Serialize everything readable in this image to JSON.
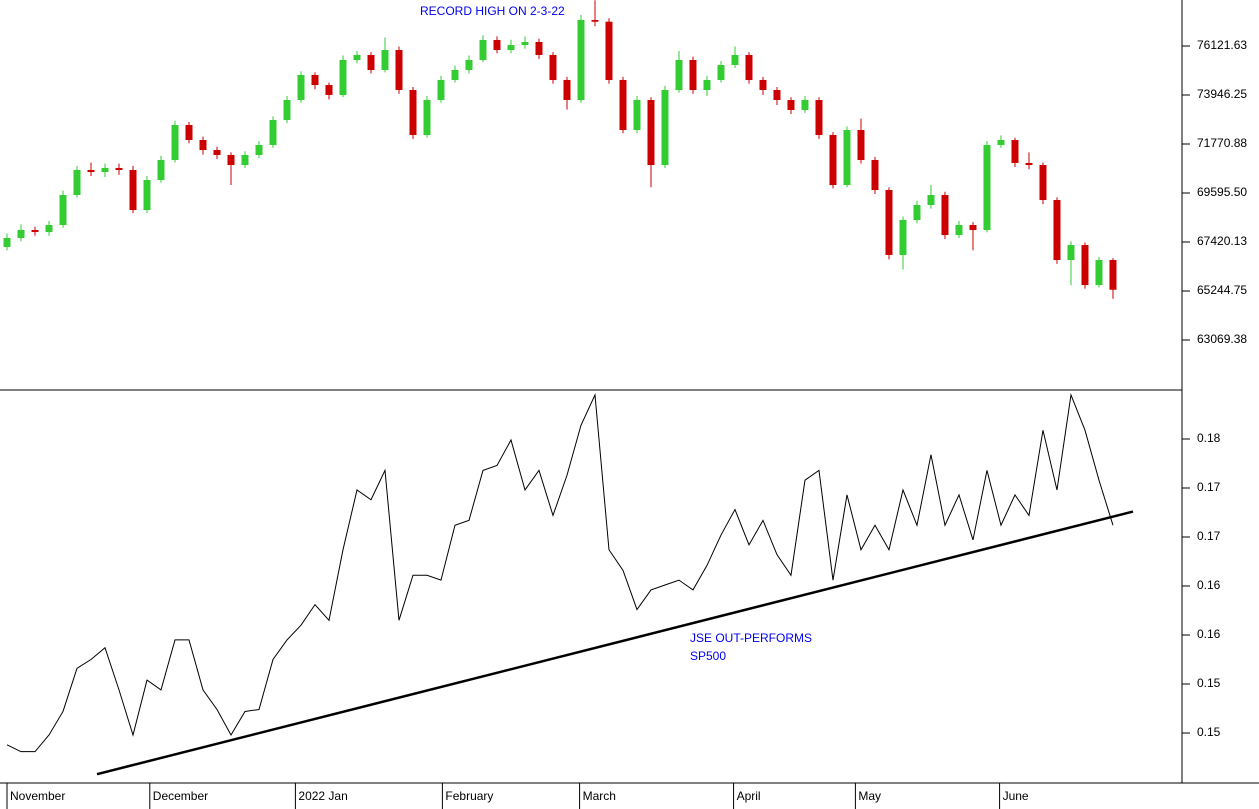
{
  "chart_data": [
    {
      "type": "candlestick",
      "up_color": "#33cc33",
      "down_color": "#cc0000",
      "annotations": [
        {
          "text": "RECORD HIGH ON 2-3-22",
          "color": "#0000ee"
        }
      ],
      "xlim": [
        -0.5,
        83.93
      ],
      "ylim": [
        60849.6,
        78163.8
      ],
      "yticks": [
        76121.63,
        73946.25,
        71770.88,
        {
          "value": 69595.5,
          "label": "69595.50"
        },
        67420.13,
        65244.75,
        63069.38
      ],
      "ohlc": [
        [
          67200,
          67800,
          67050,
          67597
        ],
        [
          67597,
          68200,
          67450,
          67952
        ],
        [
          67952,
          68100,
          67700,
          67863
        ],
        [
          67863,
          68350,
          67700,
          68174
        ],
        [
          68174,
          69700,
          68050,
          69506
        ],
        [
          69506,
          70800,
          69400,
          70616
        ],
        [
          70616,
          70950,
          70350,
          70527
        ],
        [
          70527,
          70900,
          70300,
          70705
        ],
        [
          70705,
          70900,
          70400,
          70616
        ],
        [
          70616,
          70800,
          68700,
          68840
        ],
        [
          68840,
          70350,
          68700,
          70172
        ],
        [
          70172,
          71250,
          70050,
          71060
        ],
        [
          71060,
          72800,
          70950,
          72614
        ],
        [
          72614,
          72750,
          71800,
          71948
        ],
        [
          71948,
          72100,
          71300,
          71504
        ],
        [
          71504,
          71650,
          71100,
          71282
        ],
        [
          71282,
          71400,
          69950,
          70838
        ],
        [
          70838,
          71450,
          70700,
          71282
        ],
        [
          71282,
          71900,
          71150,
          71726
        ],
        [
          71726,
          73000,
          71600,
          72836
        ],
        [
          72836,
          73900,
          72700,
          73724
        ],
        [
          73724,
          75000,
          73600,
          74834
        ],
        [
          74834,
          74950,
          74200,
          74390
        ],
        [
          74390,
          74500,
          73750,
          73946
        ],
        [
          73946,
          75700,
          73850,
          75500
        ],
        [
          75500,
          75900,
          75350,
          75722
        ],
        [
          75722,
          75850,
          74900,
          75056
        ],
        [
          75056,
          76500,
          74950,
          75944
        ],
        [
          75944,
          76100,
          74000,
          74168
        ],
        [
          74168,
          74300,
          72000,
          72170
        ],
        [
          72170,
          73900,
          72050,
          73724
        ],
        [
          73724,
          74800,
          73600,
          74612
        ],
        [
          74612,
          75250,
          74500,
          75056
        ],
        [
          75056,
          75700,
          74900,
          75500
        ],
        [
          75500,
          76600,
          75400,
          76388
        ],
        [
          76388,
          76550,
          75800,
          75944
        ],
        [
          75944,
          76400,
          75800,
          76166
        ],
        [
          76166,
          76550,
          76000,
          76299
        ],
        [
          76299,
          76450,
          75550,
          75722
        ],
        [
          75722,
          75850,
          74450,
          74612
        ],
        [
          74612,
          74750,
          73300,
          73724
        ],
        [
          73724,
          77500,
          73600,
          77276
        ],
        [
          77276,
          78150,
          77000,
          77200
        ],
        [
          77200,
          77350,
          74450,
          74612
        ],
        [
          74612,
          74750,
          72250,
          72392
        ],
        [
          72392,
          73900,
          72250,
          73724
        ],
        [
          73724,
          73850,
          69850,
          70838
        ],
        [
          70838,
          74350,
          70700,
          74168
        ],
        [
          74168,
          75900,
          74050,
          75500
        ],
        [
          75500,
          75650,
          74000,
          74168
        ],
        [
          74168,
          74800,
          73900,
          74612
        ],
        [
          74612,
          75450,
          74500,
          75278
        ],
        [
          75278,
          76100,
          75150,
          75722
        ],
        [
          75722,
          75850,
          74450,
          74612
        ],
        [
          74612,
          74750,
          73950,
          74168
        ],
        [
          74168,
          74300,
          73500,
          73724
        ],
        [
          73724,
          73850,
          73100,
          73280
        ],
        [
          73280,
          73900,
          73150,
          73724
        ],
        [
          73724,
          73850,
          72000,
          72170
        ],
        [
          72170,
          72300,
          69800,
          69950
        ],
        [
          69950,
          72550,
          69850,
          72392
        ],
        [
          72392,
          72900,
          70900,
          71060
        ],
        [
          71060,
          71200,
          69550,
          69728
        ],
        [
          69728,
          69850,
          66650,
          66842
        ],
        [
          66842,
          68550,
          66200,
          68396
        ],
        [
          68396,
          69250,
          68250,
          69062
        ],
        [
          69062,
          69950,
          68900,
          69506
        ],
        [
          69506,
          69650,
          67550,
          67730
        ],
        [
          67730,
          68350,
          67600,
          68174
        ],
        [
          68174,
          68300,
          67050,
          67952
        ],
        [
          67952,
          71900,
          67850,
          71726
        ],
        [
          71726,
          72150,
          71600,
          71948
        ],
        [
          71948,
          72050,
          70750,
          70927
        ],
        [
          70927,
          71400,
          70650,
          70838
        ],
        [
          70838,
          70950,
          69100,
          69284
        ],
        [
          69284,
          69400,
          66450,
          66620
        ],
        [
          66620,
          67450,
          65500,
          67286
        ],
        [
          67286,
          67400,
          65350,
          65510
        ],
        [
          65510,
          66750,
          65400,
          66620
        ],
        [
          66620,
          66700,
          64900,
          65300
        ]
      ]
    },
    {
      "type": "line",
      "annotations": [
        {
          "lines": [
            "JSE OUT-PERFORMS",
            "SP500"
          ],
          "color": "#0000ee"
        }
      ],
      "xlim": [
        -0.5,
        83.93
      ],
      "xticks": [
        {
          "value": 0,
          "label": "November"
        },
        {
          "value": 10.2,
          "label": "December"
        },
        {
          "value": 20.6,
          "label": "2022 Jan"
        },
        {
          "value": 31.1,
          "label": "February"
        },
        {
          "value": 40.9,
          "label": "March"
        },
        {
          "value": 51.9,
          "label": "April"
        },
        {
          "value": 60.6,
          "label": "May"
        },
        {
          "value": 70.9,
          "label": "June"
        }
      ],
      "ylim": [
        0.1429,
        0.183
      ],
      "yticks": [
        {
          "value": 0.178,
          "label": "0.18"
        },
        {
          "value": 0.173,
          "label": "0.17"
        },
        {
          "value": 0.168,
          "label": "0.17"
        },
        {
          "value": 0.163,
          "label": "0.16"
        },
        {
          "value": 0.158,
          "label": "0.16"
        },
        {
          "value": 0.153,
          "label": "0.15"
        },
        {
          "value": 0.148,
          "label": "0.15"
        }
      ],
      "trendline": {
        "x": [
          6.43,
          80.43
        ],
        "y": [
          0.1438,
          0.1706
        ],
        "color": "#000000"
      },
      "series": [
        {
          "color": "#000000",
          "values": [
            0.1468,
            0.1461,
            0.1461,
            0.1478,
            0.1502,
            0.1546,
            0.1555,
            0.1567,
            0.1524,
            0.1478,
            0.1534,
            0.1524,
            0.1575,
            0.1575,
            0.1524,
            0.1504,
            0.1478,
            0.1502,
            0.1504,
            0.1555,
            0.1575,
            0.159,
            0.1611,
            0.1595,
            0.1667,
            0.1728,
            0.1718,
            0.1748,
            0.1595,
            0.1641,
            0.1641,
            0.1636,
            0.1692,
            0.1697,
            0.1748,
            0.1753,
            0.1779,
            0.1728,
            0.1748,
            0.1702,
            0.1743,
            0.1794,
            0.1825,
            0.1667,
            0.1646,
            0.1606,
            0.1626,
            0.1631,
            0.1636,
            0.1626,
            0.1651,
            0.1682,
            0.1708,
            0.1672,
            0.1697,
            0.1662,
            0.1641,
            0.1738,
            0.1748,
            0.1636,
            0.1723,
            0.1667,
            0.1692,
            0.1667,
            0.1728,
            0.1692,
            0.1764,
            0.1692,
            0.1723,
            0.1677,
            0.1748,
            0.1692,
            0.1723,
            0.1702,
            0.1789,
            0.1728,
            0.1825,
            0.1789,
            0.1738,
            0.1692
          ]
        }
      ]
    }
  ]
}
